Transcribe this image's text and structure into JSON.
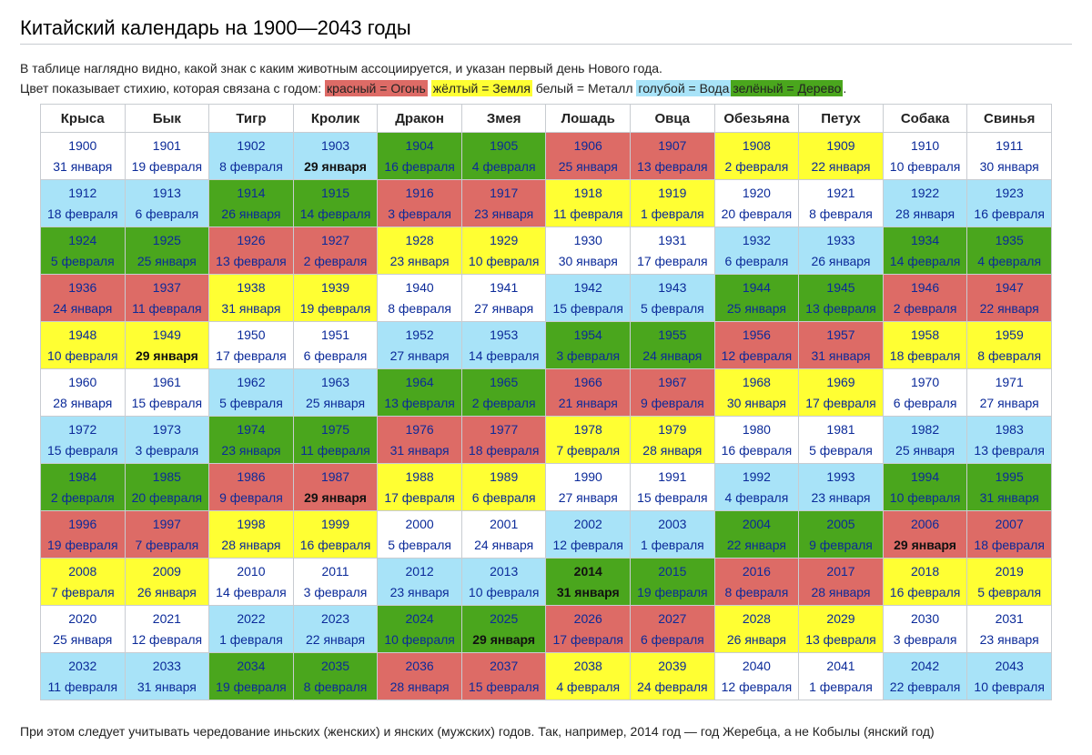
{
  "title": "Китайский календарь на 1900—2043 годы",
  "intro": {
    "line1": "В таблице наглядно видно, какой знак с каким животным ассоциируется, и указан первый день Нового года.",
    "line2_prefix": "Цвет показывает стихию, которая связана с годом:",
    "legend": {
      "red": "красный = Огонь",
      "yellow": "жёлтый = Земля",
      "white": "белый = Металл",
      "blue": "голубой = Вода",
      "green": "зелёный = Дерево"
    },
    "line2_suffix": "."
  },
  "colors": {
    "red": "#dd6b66",
    "yellow": "#ffff33",
    "white": "#ffffff",
    "blue": "#a8e3f8",
    "green": "#4aa61d",
    "text": "#0b2a99"
  },
  "animals": [
    "Крыса",
    "Бык",
    "Тигр",
    "Кролик",
    "Дракон",
    "Змея",
    "Лошадь",
    "Овца",
    "Обезьяна",
    "Петух",
    "Собака",
    "Свинья"
  ],
  "rows": [
    [
      [
        "1900",
        "31 января",
        "white"
      ],
      [
        "1901",
        "19 февраля",
        "white"
      ],
      [
        "1902",
        "8 февраля",
        "blue"
      ],
      [
        "1903",
        "29 января",
        "blue",
        1
      ],
      [
        "1904",
        "16 февраля",
        "green"
      ],
      [
        "1905",
        "4 февраля",
        "green"
      ],
      [
        "1906",
        "25 января",
        "red"
      ],
      [
        "1907",
        "13 февраля",
        "red"
      ],
      [
        "1908",
        "2 февраля",
        "yellow"
      ],
      [
        "1909",
        "22 января",
        "yellow"
      ],
      [
        "1910",
        "10 февраля",
        "white"
      ],
      [
        "1911",
        "30 января",
        "white"
      ]
    ],
    [
      [
        "1912",
        "18 февраля",
        "blue"
      ],
      [
        "1913",
        "6 февраля",
        "blue"
      ],
      [
        "1914",
        "26 января",
        "green"
      ],
      [
        "1915",
        "14 февраля",
        "green"
      ],
      [
        "1916",
        "3 февраля",
        "red"
      ],
      [
        "1917",
        "23 января",
        "red"
      ],
      [
        "1918",
        "11 февраля",
        "yellow"
      ],
      [
        "1919",
        "1 февраля",
        "yellow"
      ],
      [
        "1920",
        "20 февраля",
        "white"
      ],
      [
        "1921",
        "8 февраля",
        "white"
      ],
      [
        "1922",
        "28 января",
        "blue"
      ],
      [
        "1923",
        "16 февраля",
        "blue"
      ]
    ],
    [
      [
        "1924",
        "5 февраля",
        "green"
      ],
      [
        "1925",
        "25 января",
        "green"
      ],
      [
        "1926",
        "13 февраля",
        "red"
      ],
      [
        "1927",
        "2 февраля",
        "red"
      ],
      [
        "1928",
        "23 января",
        "yellow"
      ],
      [
        "1929",
        "10 февраля",
        "yellow"
      ],
      [
        "1930",
        "30 января",
        "white"
      ],
      [
        "1931",
        "17 февраля",
        "white"
      ],
      [
        "1932",
        "6 февраля",
        "blue"
      ],
      [
        "1933",
        "26 января",
        "blue"
      ],
      [
        "1934",
        "14 февраля",
        "green"
      ],
      [
        "1935",
        "4 февраля",
        "green"
      ]
    ],
    [
      [
        "1936",
        "24 января",
        "red"
      ],
      [
        "1937",
        "11 февраля",
        "red"
      ],
      [
        "1938",
        "31 января",
        "yellow"
      ],
      [
        "1939",
        "19 февраля",
        "yellow"
      ],
      [
        "1940",
        "8 февраля",
        "white"
      ],
      [
        "1941",
        "27 января",
        "white"
      ],
      [
        "1942",
        "15 февраля",
        "blue"
      ],
      [
        "1943",
        "5 февраля",
        "blue"
      ],
      [
        "1944",
        "25 января",
        "green"
      ],
      [
        "1945",
        "13 февраля",
        "green"
      ],
      [
        "1946",
        "2 февраля",
        "red"
      ],
      [
        "1947",
        "22 января",
        "red"
      ]
    ],
    [
      [
        "1948",
        "10 февраля",
        "yellow"
      ],
      [
        "1949",
        "29 января",
        "yellow",
        1
      ],
      [
        "1950",
        "17 февраля",
        "white"
      ],
      [
        "1951",
        "6 февраля",
        "white"
      ],
      [
        "1952",
        "27 января",
        "blue"
      ],
      [
        "1953",
        "14 февраля",
        "blue"
      ],
      [
        "1954",
        "3 февраля",
        "green"
      ],
      [
        "1955",
        "24 января",
        "green"
      ],
      [
        "1956",
        "12 февраля",
        "red"
      ],
      [
        "1957",
        "31 января",
        "red"
      ],
      [
        "1958",
        "18 февраля",
        "yellow"
      ],
      [
        "1959",
        "8 февраля",
        "yellow"
      ]
    ],
    [
      [
        "1960",
        "28 января",
        "white"
      ],
      [
        "1961",
        "15 февраля",
        "white"
      ],
      [
        "1962",
        "5 февраля",
        "blue"
      ],
      [
        "1963",
        "25 января",
        "blue"
      ],
      [
        "1964",
        "13 февраля",
        "green"
      ],
      [
        "1965",
        "2 февраля",
        "green"
      ],
      [
        "1966",
        "21 января",
        "red"
      ],
      [
        "1967",
        "9 февраля",
        "red"
      ],
      [
        "1968",
        "30 января",
        "yellow"
      ],
      [
        "1969",
        "17 февраля",
        "yellow"
      ],
      [
        "1970",
        "6 февраля",
        "white"
      ],
      [
        "1971",
        "27 января",
        "white"
      ]
    ],
    [
      [
        "1972",
        "15 февраля",
        "blue"
      ],
      [
        "1973",
        "3 февраля",
        "blue"
      ],
      [
        "1974",
        "23 января",
        "green"
      ],
      [
        "1975",
        "11 февраля",
        "green"
      ],
      [
        "1976",
        "31 января",
        "red"
      ],
      [
        "1977",
        "18 февраля",
        "red"
      ],
      [
        "1978",
        "7 февраля",
        "yellow"
      ],
      [
        "1979",
        "28 января",
        "yellow"
      ],
      [
        "1980",
        "16 февраля",
        "white"
      ],
      [
        "1981",
        "5 февраля",
        "white"
      ],
      [
        "1982",
        "25 января",
        "blue"
      ],
      [
        "1983",
        "13 февраля",
        "blue"
      ]
    ],
    [
      [
        "1984",
        "2 февраля",
        "green"
      ],
      [
        "1985",
        "20 февраля",
        "green"
      ],
      [
        "1986",
        "9 февраля",
        "red"
      ],
      [
        "1987",
        "29 января",
        "red",
        1
      ],
      [
        "1988",
        "17 февраля",
        "yellow"
      ],
      [
        "1989",
        "6 февраля",
        "yellow"
      ],
      [
        "1990",
        "27 января",
        "white"
      ],
      [
        "1991",
        "15 февраля",
        "white"
      ],
      [
        "1992",
        "4 февраля",
        "blue"
      ],
      [
        "1993",
        "23 января",
        "blue"
      ],
      [
        "1994",
        "10 февраля",
        "green"
      ],
      [
        "1995",
        "31 января",
        "green"
      ]
    ],
    [
      [
        "1996",
        "19 февраля",
        "red"
      ],
      [
        "1997",
        "7 февраля",
        "red"
      ],
      [
        "1998",
        "28 января",
        "yellow"
      ],
      [
        "1999",
        "16 февраля",
        "yellow"
      ],
      [
        "2000",
        "5 февраля",
        "white"
      ],
      [
        "2001",
        "24 января",
        "white"
      ],
      [
        "2002",
        "12 февраля",
        "blue"
      ],
      [
        "2003",
        "1 февраля",
        "blue"
      ],
      [
        "2004",
        "22 января",
        "green"
      ],
      [
        "2005",
        "9 февраля",
        "green"
      ],
      [
        "2006",
        "29 января",
        "red",
        1
      ],
      [
        "2007",
        "18 февраля",
        "red"
      ]
    ],
    [
      [
        "2008",
        "7 февраля",
        "yellow"
      ],
      [
        "2009",
        "26 января",
        "yellow"
      ],
      [
        "2010",
        "14 февраля",
        "white"
      ],
      [
        "2011",
        "3 февраля",
        "white"
      ],
      [
        "2012",
        "23 января",
        "blue"
      ],
      [
        "2013",
        "10 февраля",
        "blue"
      ],
      [
        "2014",
        "31 января",
        "green",
        2
      ],
      [
        "2015",
        "19 февраля",
        "green"
      ],
      [
        "2016",
        "8 февраля",
        "red"
      ],
      [
        "2017",
        "28 января",
        "red"
      ],
      [
        "2018",
        "16 февраля",
        "yellow"
      ],
      [
        "2019",
        "5 февраля",
        "yellow"
      ]
    ],
    [
      [
        "2020",
        "25 января",
        "white"
      ],
      [
        "2021",
        "12 февраля",
        "white"
      ],
      [
        "2022",
        "1 февраля",
        "blue"
      ],
      [
        "2023",
        "22 января",
        "blue"
      ],
      [
        "2024",
        "10 февраля",
        "green"
      ],
      [
        "2025",
        "29 января",
        "green",
        1
      ],
      [
        "2026",
        "17 февраля",
        "red"
      ],
      [
        "2027",
        "6 февраля",
        "red"
      ],
      [
        "2028",
        "26 января",
        "yellow"
      ],
      [
        "2029",
        "13 февраля",
        "yellow"
      ],
      [
        "2030",
        "3 февраля",
        "white"
      ],
      [
        "2031",
        "23 января",
        "white"
      ]
    ],
    [
      [
        "2032",
        "11 февраля",
        "blue"
      ],
      [
        "2033",
        "31 января",
        "blue"
      ],
      [
        "2034",
        "19 февраля",
        "green"
      ],
      [
        "2035",
        "8 февраля",
        "green"
      ],
      [
        "2036",
        "28 января",
        "red"
      ],
      [
        "2037",
        "15 февраля",
        "red"
      ],
      [
        "2038",
        "4 февраля",
        "yellow"
      ],
      [
        "2039",
        "24 февраля",
        "yellow"
      ],
      [
        "2040",
        "12 февраля",
        "white"
      ],
      [
        "2041",
        "1 февраля",
        "white"
      ],
      [
        "2042",
        "22 февраля",
        "blue"
      ],
      [
        "2043",
        "10 февраля",
        "blue"
      ]
    ]
  ],
  "footnote": "При этом следует учитывать чередование иньских (женских) и янских (мужских) годов. Так, например, 2014 год — год Жеребца, а не Кобылы (янский год)"
}
